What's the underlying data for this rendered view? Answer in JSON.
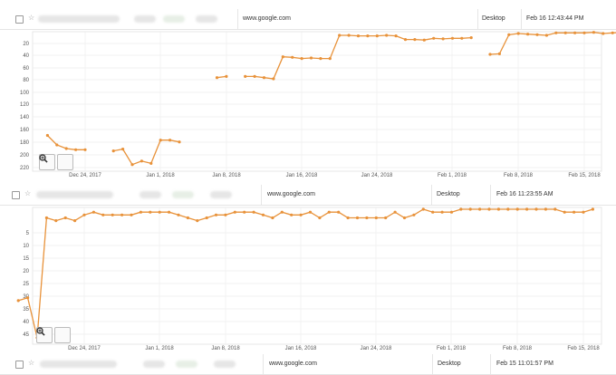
{
  "rows": [
    {
      "domain": "www.google.com",
      "device": "Desktop",
      "date": "Feb 16 12:43:44 PM"
    },
    {
      "domain": "www.google.com",
      "device": "Desktop",
      "date": "Feb 16 11:23:55 AM"
    },
    {
      "domain": "www.google.com",
      "device": "Desktop",
      "date": "Feb 15 11:01:57 PM"
    }
  ],
  "colors": {
    "line": "#e8923a",
    "grid": "#eeeeee",
    "axis": "#555555"
  },
  "icons": {
    "zoom_in": "zoom-in-icon",
    "zoom_out": "zoom-out-icon",
    "star": "star-icon",
    "checkbox": "checkbox"
  },
  "chart_data": [
    {
      "type": "line",
      "x_tick_labels": [
        "Dec 24, 2017",
        "Jan 1, 2018",
        "Jan 8, 2018",
        "Jan 16, 2018",
        "Jan 24, 2018",
        "Feb 1, 2018",
        "Feb 8, 2018",
        "Feb 15, 2018"
      ],
      "y_tick_labels": [
        "20",
        "40",
        "60",
        "80",
        "100",
        "120",
        "140",
        "160",
        "180",
        "200",
        "220"
      ],
      "y_reversed": true,
      "ylim": [
        3,
        228
      ],
      "x_range": [
        "2017-12-17",
        "2018-02-16"
      ],
      "grid": true,
      "series": [
        {
          "points": [
            [
              "2017-12-20",
              174
            ],
            [
              "2017-12-21",
              190
            ],
            [
              "2017-12-22",
              196
            ],
            [
              "2017-12-23",
              198
            ],
            [
              "2017-12-24",
              198
            ],
            [
              "2017-12-27",
              200
            ],
            [
              "2017-12-28",
              197
            ],
            [
              "2017-12-29",
              223
            ],
            [
              "2017-12-30",
              217
            ],
            [
              "2017-12-31",
              221
            ],
            [
              "2018-01-01",
              182
            ],
            [
              "2018-01-02",
              182
            ],
            [
              "2018-01-03",
              185
            ],
            [
              "2018-01-07",
              77
            ],
            [
              "2018-01-08",
              75
            ],
            [
              "2018-01-10",
              75
            ],
            [
              "2018-01-11",
              75
            ],
            [
              "2018-01-12",
              77
            ],
            [
              "2018-01-13",
              79
            ],
            [
              "2018-01-14",
              42
            ],
            [
              "2018-01-15",
              43
            ],
            [
              "2018-01-16",
              45
            ],
            [
              "2018-01-17",
              44
            ],
            [
              "2018-01-18",
              45
            ],
            [
              "2018-01-19",
              45
            ],
            [
              "2018-01-20",
              6
            ],
            [
              "2018-01-21",
              6
            ],
            [
              "2018-01-22",
              7
            ],
            [
              "2018-01-23",
              7
            ],
            [
              "2018-01-24",
              7
            ],
            [
              "2018-01-25",
              6
            ],
            [
              "2018-01-26",
              7
            ],
            [
              "2018-01-27",
              13
            ],
            [
              "2018-01-28",
              13
            ],
            [
              "2018-01-29",
              14
            ],
            [
              "2018-01-30",
              11
            ],
            [
              "2018-01-31",
              12
            ],
            [
              "2018-02-01",
              11
            ],
            [
              "2018-02-02",
              11
            ],
            [
              "2018-02-03",
              10
            ],
            [
              "2018-02-05",
              38
            ],
            [
              "2018-02-06",
              37
            ],
            [
              "2018-02-07",
              5
            ],
            [
              "2018-02-08",
              3
            ],
            [
              "2018-02-09",
              4
            ],
            [
              "2018-02-10",
              5
            ],
            [
              "2018-02-11",
              6
            ],
            [
              "2018-02-12",
              2
            ],
            [
              "2018-02-13",
              2
            ],
            [
              "2018-02-14",
              2
            ],
            [
              "2018-02-15",
              2
            ],
            [
              "2018-02-16",
              1
            ],
            [
              "2018-02-17",
              3
            ],
            [
              "2018-02-18",
              2
            ],
            [
              "2018-02-19",
              1
            ]
          ]
        }
      ]
    },
    {
      "type": "line",
      "x_tick_labels": [
        "Dec 24, 2017",
        "Jan 1, 2018",
        "Jan 8, 2018",
        "Jan 16, 2018",
        "Jan 24, 2018",
        "Feb 1, 2018",
        "Feb 8, 2018",
        "Feb 15, 2018"
      ],
      "y_tick_labels": [
        "5",
        "10",
        "15",
        "20",
        "25",
        "30",
        "35",
        "40",
        "45"
      ],
      "y_reversed": true,
      "ylim": [
        0,
        46
      ],
      "x_range": [
        "2017-12-17",
        "2018-02-16"
      ],
      "grid": true,
      "series": [
        {
          "points": [
            [
              "2017-12-17",
              32
            ],
            [
              "2017-12-18",
              31
            ],
            [
              "2017-12-19",
              45
            ],
            [
              "2017-12-20",
              3
            ],
            [
              "2017-12-21",
              4
            ],
            [
              "2017-12-22",
              3
            ],
            [
              "2017-12-23",
              4
            ],
            [
              "2017-12-24",
              2
            ],
            [
              "2017-12-25",
              1
            ],
            [
              "2017-12-26",
              2
            ],
            [
              "2017-12-27",
              2
            ],
            [
              "2017-12-28",
              2
            ],
            [
              "2017-12-29",
              2
            ],
            [
              "2017-12-30",
              1
            ],
            [
              "2017-12-31",
              1
            ],
            [
              "2018-01-01",
              1
            ],
            [
              "2018-01-02",
              1
            ],
            [
              "2018-01-03",
              2
            ],
            [
              "2018-01-04",
              3
            ],
            [
              "2018-01-05",
              4
            ],
            [
              "2018-01-06",
              3
            ],
            [
              "2018-01-07",
              2
            ],
            [
              "2018-01-08",
              2
            ],
            [
              "2018-01-09",
              1
            ],
            [
              "2018-01-10",
              1
            ],
            [
              "2018-01-11",
              1
            ],
            [
              "2018-01-12",
              2
            ],
            [
              "2018-01-13",
              3
            ],
            [
              "2018-01-14",
              1
            ],
            [
              "2018-01-15",
              2
            ],
            [
              "2018-01-16",
              2
            ],
            [
              "2018-01-17",
              1
            ],
            [
              "2018-01-18",
              3
            ],
            [
              "2018-01-19",
              1
            ],
            [
              "2018-01-20",
              1
            ],
            [
              "2018-01-21",
              3
            ],
            [
              "2018-01-22",
              3
            ],
            [
              "2018-01-23",
              3
            ],
            [
              "2018-01-24",
              3
            ],
            [
              "2018-01-25",
              3
            ],
            [
              "2018-01-26",
              1
            ],
            [
              "2018-01-27",
              3
            ],
            [
              "2018-01-28",
              2
            ],
            [
              "2018-01-29",
              0
            ],
            [
              "2018-01-30",
              1
            ],
            [
              "2018-01-31",
              1
            ],
            [
              "2018-02-01",
              1
            ],
            [
              "2018-02-02",
              0
            ],
            [
              "2018-02-03",
              0
            ],
            [
              "2018-02-04",
              0
            ],
            [
              "2018-02-05",
              0
            ],
            [
              "2018-02-06",
              0
            ],
            [
              "2018-02-07",
              0
            ],
            [
              "2018-02-08",
              0
            ],
            [
              "2018-02-09",
              0
            ],
            [
              "2018-02-10",
              0
            ],
            [
              "2018-02-11",
              0
            ],
            [
              "2018-02-12",
              0
            ],
            [
              "2018-02-13",
              1
            ],
            [
              "2018-02-14",
              1
            ],
            [
              "2018-02-15",
              1
            ],
            [
              "2018-02-16",
              0
            ]
          ]
        }
      ]
    }
  ]
}
